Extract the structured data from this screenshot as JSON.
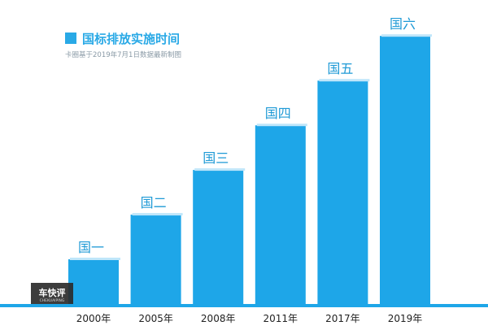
{
  "chart_data": {
    "type": "bar",
    "categories": [
      "2000年",
      "2005年",
      "2008年",
      "2011年",
      "2017年",
      "2019年"
    ],
    "values": [
      1,
      2,
      3,
      4,
      5,
      6
    ],
    "bar_labels": [
      "国一",
      "国二",
      "国三",
      "国四",
      "国五",
      "国六"
    ],
    "legend": "国标排放实施时间",
    "source_note": "卡圈基于2019年7月1日数据最新制图",
    "ylim": [
      0,
      6.15
    ],
    "grid": false,
    "colors": {
      "bar": "#1ea6e8",
      "bar_highlight": "#bfe6fa",
      "baseline": "#1ea6e8"
    }
  },
  "watermark": {
    "title": "车快评",
    "subtitle": "CHEKUAIPING"
  }
}
